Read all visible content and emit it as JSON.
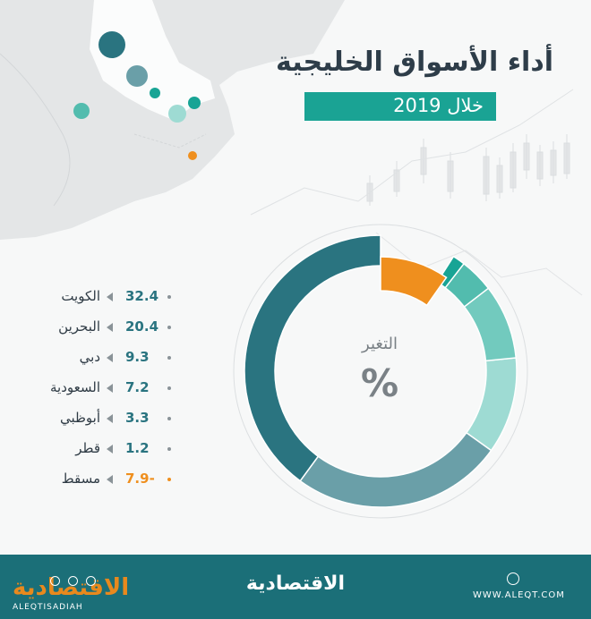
{
  "title": "أداء الأسواق الخليجية",
  "subtitle": "خلال 2019",
  "colors": {
    "accent": "#1aa394",
    "dark_teal": "#2a7480",
    "grey_teal": "#6a9fa8",
    "light_teal": "#9edbd3",
    "mid_teal": "#5cc3b6",
    "orange": "#ef8f1e",
    "footer": "#1b6f78"
  },
  "chart_data": {
    "type": "pie",
    "variant": "donut",
    "center_label": "التغير",
    "center_sign": "%",
    "unit": "%",
    "series": [
      {
        "name": "الكويت",
        "value": 32.4,
        "display": "32.4",
        "color": "#2a7480"
      },
      {
        "name": "البحرين",
        "value": 20.4,
        "display": "20.4",
        "color": "#6a9fa8"
      },
      {
        "name": "دبي",
        "value": 9.3,
        "display": "9.3",
        "color": "#9edbd3"
      },
      {
        "name": "السعودية",
        "value": 7.2,
        "display": "7.2",
        "color": "#72cabe"
      },
      {
        "name": "أبوظبي",
        "value": 3.3,
        "display": "3.3",
        "color": "#52bcae"
      },
      {
        "name": "قطر",
        "value": 1.2,
        "display": "1.2",
        "color": "#18a495"
      },
      {
        "name": "مسقط",
        "value": -7.9,
        "display": "7.9-",
        "color": "#ef8f1e"
      }
    ]
  },
  "footer": {
    "brand": "الاقتصادية",
    "brand_latin": "ALEQTISADIAH",
    "website": "WWW.ALEQT.COM"
  }
}
